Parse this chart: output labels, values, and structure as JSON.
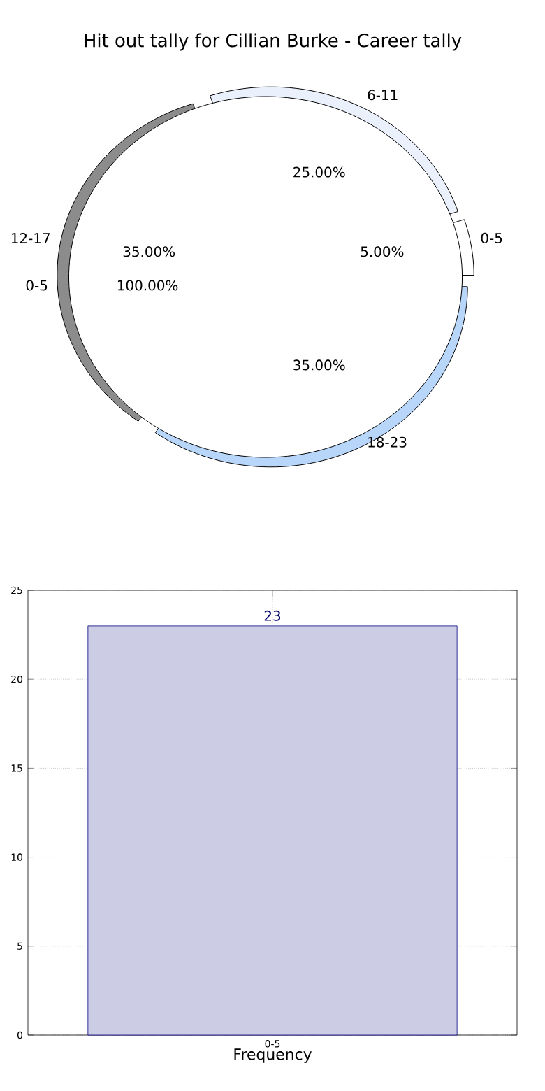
{
  "chart_data": [
    {
      "type": "pie",
      "title": "Hit out tally for Cillian Burke - Career tally",
      "categories": [
        "0-5",
        "6-11",
        "12-17",
        "18-23"
      ],
      "values": [
        5,
        25,
        35,
        35
      ],
      "value_labels": [
        "5.00%",
        "25.00%",
        "35.00%",
        "35.00%"
      ],
      "colors": [
        "#ffffff",
        "#eaf0fc",
        "#8c8c8c",
        "#b8d6fa"
      ]
    },
    {
      "type": "pie",
      "categories": [
        "0-5"
      ],
      "values": [
        100
      ],
      "value_labels": [
        "100.00%"
      ],
      "colors": [
        "#ffffff"
      ]
    },
    {
      "type": "bar",
      "categories": [
        "0-5"
      ],
      "values": [
        23
      ],
      "color": "#ccccE4",
      "xlabel": "Frequency",
      "ylim": [
        0,
        25
      ],
      "yticks": [
        0,
        5,
        10,
        15,
        20,
        25
      ],
      "grid": true,
      "data_labels": true
    }
  ]
}
